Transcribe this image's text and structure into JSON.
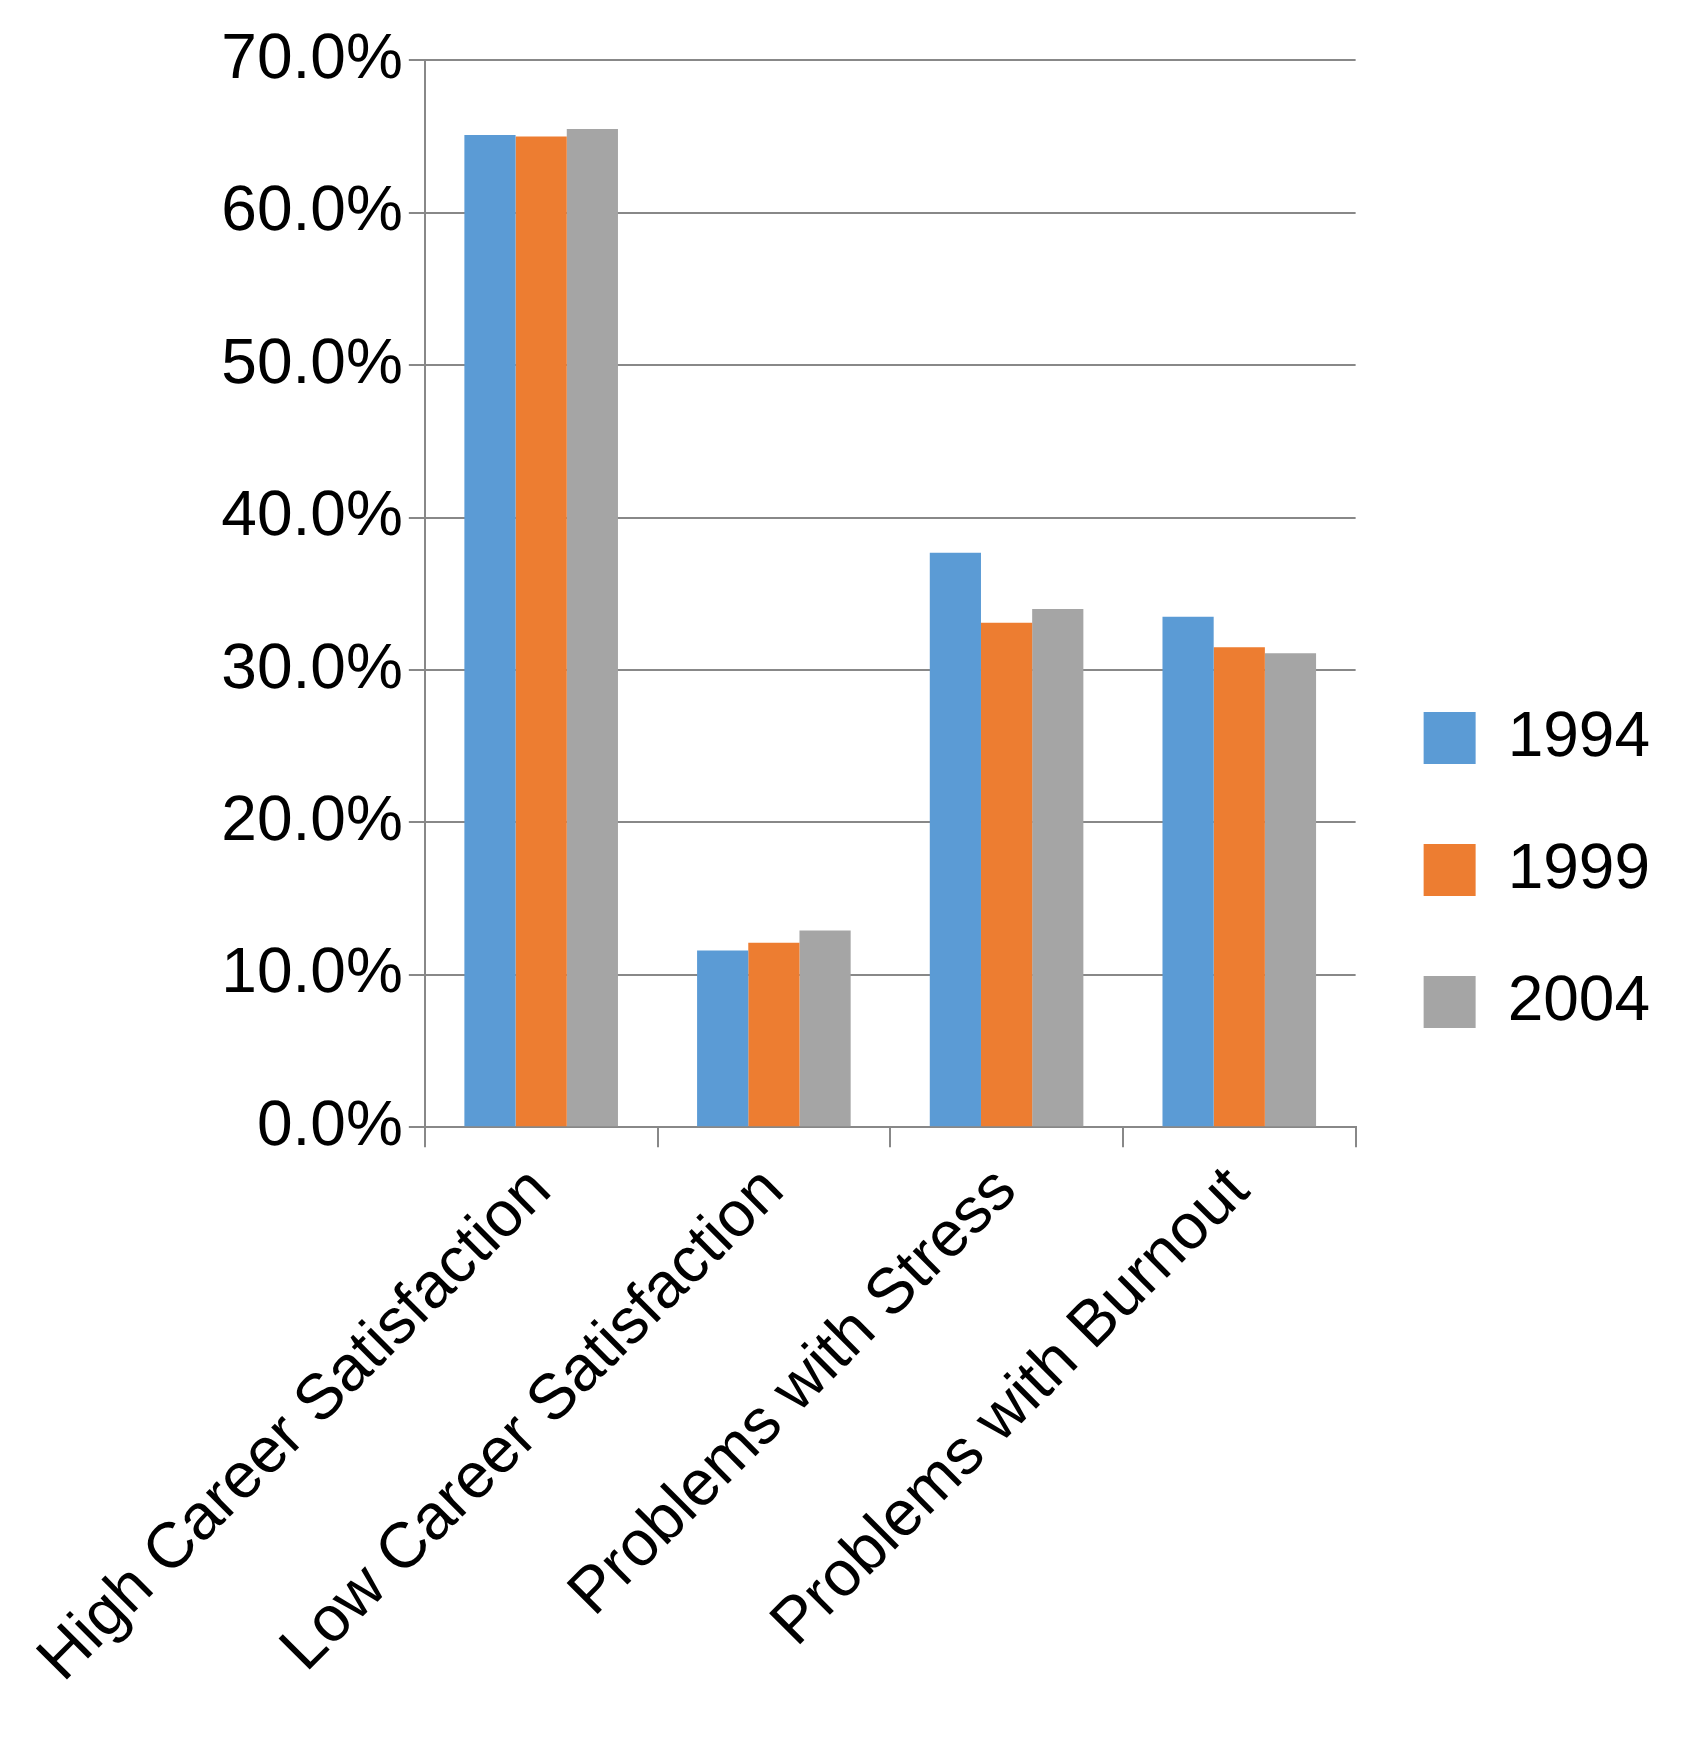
{
  "chart_data": {
    "type": "bar",
    "categories": [
      "High Career Satisfaction",
      "Low Career Satisfaction",
      "Problems with Stress",
      "Problems with Burnout"
    ],
    "series": [
      {
        "name": "1994",
        "color": "#5b9bd5",
        "values": [
          65.1,
          11.6,
          37.7,
          33.5
        ]
      },
      {
        "name": "1999",
        "color": "#ed7d31",
        "values": [
          65.0,
          12.1,
          33.1,
          31.5
        ]
      },
      {
        "name": "2004",
        "color": "#a5a5a5",
        "values": [
          65.5,
          12.9,
          34.0,
          31.1
        ]
      }
    ],
    "ylim": [
      0,
      70
    ],
    "yticks": [
      {
        "value": 0,
        "label": "0.0%"
      },
      {
        "value": 10,
        "label": "10.0%"
      },
      {
        "value": 20,
        "label": "20.0%"
      },
      {
        "value": 30,
        "label": "30.0%"
      },
      {
        "value": 40,
        "label": "40.0%"
      },
      {
        "value": 50,
        "label": "50.0%"
      },
      {
        "value": 60,
        "label": "60.0%"
      },
      {
        "value": 70,
        "label": "70.0%"
      }
    ],
    "grid": "y",
    "legend": "right"
  }
}
